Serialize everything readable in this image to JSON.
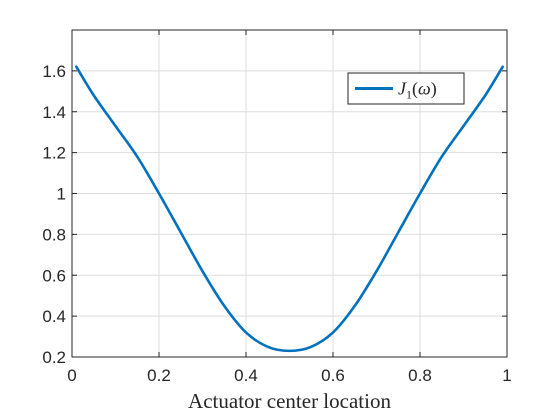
{
  "chart_data": {
    "type": "line",
    "title": "",
    "xlabel": "Actuator center location",
    "ylabel": "",
    "xlim": [
      0,
      1
    ],
    "ylim": [
      0.2,
      1.8
    ],
    "xticks": [
      0,
      0.2,
      0.4,
      0.6,
      0.8,
      1
    ],
    "xtick_labels": [
      "0",
      "0.2",
      "0.4",
      "0.6",
      "0.8",
      "1"
    ],
    "yticks": [
      0.2,
      0.4,
      0.6,
      0.8,
      1.0,
      1.2,
      1.4,
      1.6
    ],
    "ytick_labels": [
      "0.2",
      "0.4",
      "0.6",
      "0.8",
      "1",
      "1.2",
      "1.4",
      "1.6"
    ],
    "grid": true,
    "legend_position": "top-right",
    "series": [
      {
        "name": "J1(ω)",
        "color": "#0072BD",
        "x": [
          0.01,
          0.05,
          0.1,
          0.15,
          0.2,
          0.25,
          0.3,
          0.35,
          0.4,
          0.45,
          0.5,
          0.55,
          0.6,
          0.65,
          0.7,
          0.75,
          0.8,
          0.85,
          0.9,
          0.95,
          0.99
        ],
        "y": [
          1.62,
          1.48,
          1.33,
          1.18,
          1.0,
          0.81,
          0.62,
          0.45,
          0.32,
          0.25,
          0.23,
          0.25,
          0.32,
          0.45,
          0.62,
          0.81,
          1.0,
          1.18,
          1.33,
          1.48,
          1.62
        ]
      }
    ]
  }
}
